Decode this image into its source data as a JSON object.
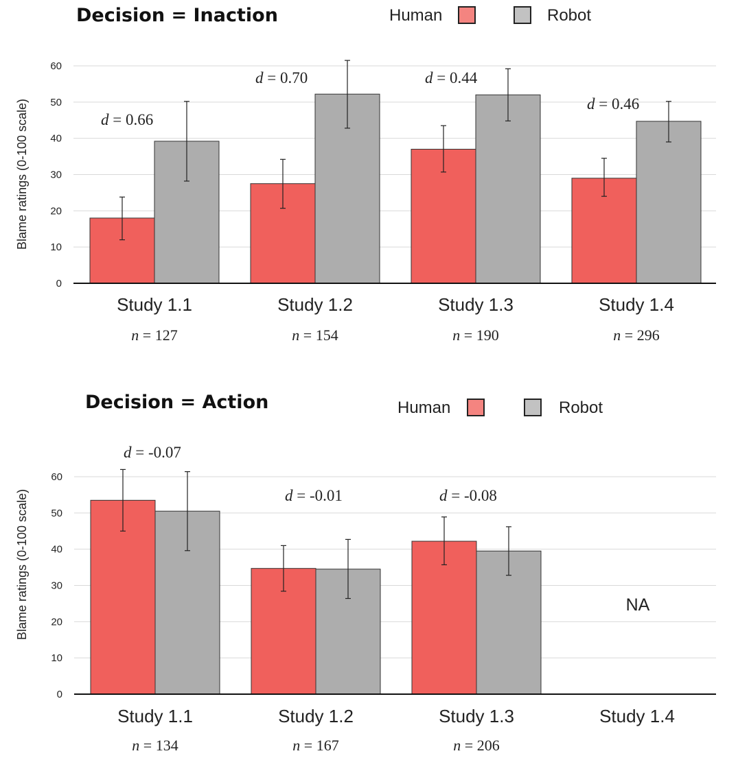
{
  "chart_data": [
    {
      "type": "bar",
      "title": "Decision = Inaction",
      "ylabel": "Blame ratings  (0-100 scale)",
      "ylim": [
        0,
        60
      ],
      "yticks": [
        "0",
        "10",
        "20",
        "30",
        "40",
        "50",
        "60"
      ],
      "categories": [
        "Study 1.1",
        "Study 1.2",
        "Study 1.3",
        "Study 1.4"
      ],
      "n_labels": [
        "127",
        "154",
        "190",
        "296"
      ],
      "effect_sizes": [
        "0.66",
        "0.70",
        "0.44",
        "0.46"
      ],
      "series": [
        {
          "name": "Human",
          "color": "#f0605c",
          "values": [
            18,
            27.5,
            37,
            29
          ],
          "err_low": [
            12,
            20.7,
            30.7,
            24
          ],
          "err_high": [
            23.8,
            34.2,
            43.5,
            34.5
          ]
        },
        {
          "name": "Robot",
          "color": "#adadad",
          "values": [
            39.2,
            52.2,
            52,
            44.7
          ],
          "err_low": [
            28.2,
            42.8,
            44.8,
            39
          ],
          "err_high": [
            50.2,
            61.5,
            59.2,
            50.2
          ]
        }
      ],
      "na_label": ""
    },
    {
      "type": "bar",
      "title": "Decision = Action",
      "ylabel": "Blame ratings  (0-100 scale)",
      "ylim": [
        0,
        60
      ],
      "yticks": [
        "0",
        "10",
        "20",
        "30",
        "40",
        "50",
        "60"
      ],
      "categories": [
        "Study 1.1",
        "Study 1.2",
        "Study 1.3",
        "Study 1.4"
      ],
      "n_labels": [
        "134",
        "167",
        "206",
        ""
      ],
      "effect_sizes": [
        "-0.07",
        "-0.01",
        "-0.08",
        ""
      ],
      "series": [
        {
          "name": "Human",
          "color": "#f0605c",
          "values": [
            53.5,
            34.7,
            42.2,
            null
          ],
          "err_low": [
            45,
            28.4,
            35.7,
            null
          ],
          "err_high": [
            62,
            41,
            48.9,
            null
          ]
        },
        {
          "name": "Robot",
          "color": "#adadad",
          "values": [
            50.5,
            34.5,
            39.5,
            null
          ],
          "err_low": [
            39.6,
            26.4,
            32.8,
            null
          ],
          "err_high": [
            61.4,
            42.7,
            46.2,
            null
          ]
        }
      ],
      "na_label": "NA"
    }
  ],
  "labels": {
    "d_symbol": "d",
    "n_symbol": "n",
    "equals": " = "
  }
}
